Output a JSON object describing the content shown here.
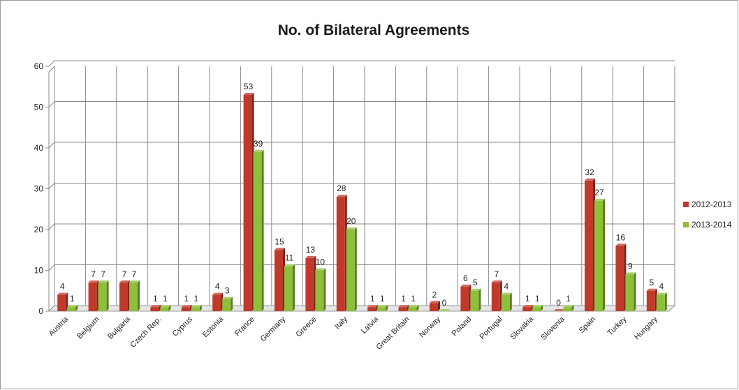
{
  "chart_data": {
    "type": "bar",
    "title": "No. of Bilateral Agreements",
    "xlabel": "",
    "ylabel": "",
    "ylim": [
      0,
      60
    ],
    "yticks": [
      0,
      10,
      20,
      30,
      40,
      50,
      60
    ],
    "grid": true,
    "legend_position": "right",
    "categories": [
      "Austria",
      "Belgium",
      "Bulgaria",
      "Czech Rep.",
      "Cyprus",
      "Estonia",
      "France",
      "Germany",
      "Greece",
      "Italy",
      "Latvia",
      "Great Britain",
      "Norway",
      "Poland",
      "Portugal",
      "Slovakia",
      "Slovenia",
      "Spain",
      "Turkey",
      "Hungary"
    ],
    "series": [
      {
        "name": "2012-2013",
        "color": "#c0392b",
        "values": [
          4,
          7,
          7,
          1,
          1,
          4,
          53,
          15,
          13,
          28,
          1,
          1,
          2,
          6,
          7,
          1,
          0,
          32,
          16,
          5
        ]
      },
      {
        "name": "2013-2014",
        "color": "#8dbf3a",
        "values": [
          1,
          7,
          7,
          1,
          1,
          3,
          39,
          11,
          10,
          20,
          1,
          1,
          0,
          5,
          4,
          1,
          1,
          27,
          9,
          4
        ]
      }
    ]
  }
}
